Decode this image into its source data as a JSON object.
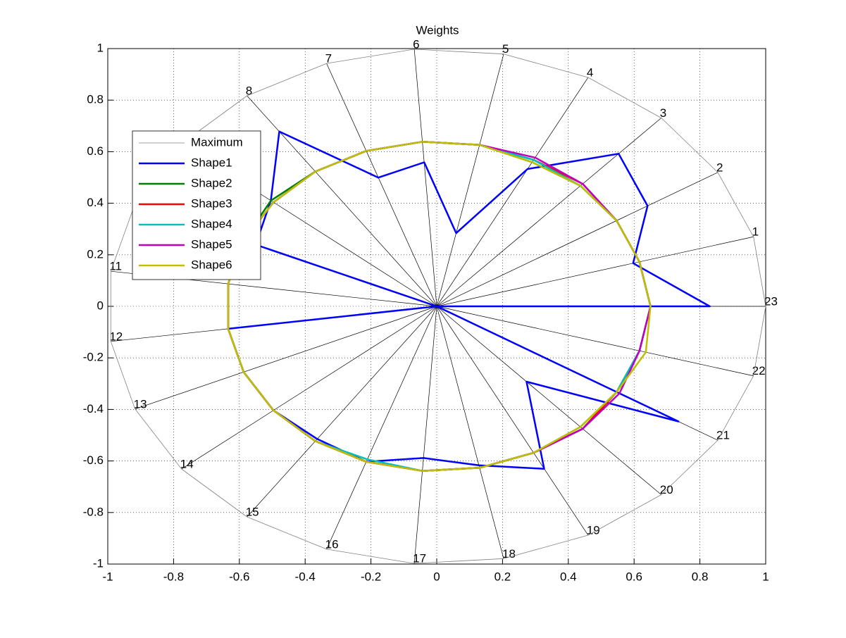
{
  "chart_data": {
    "type": "radar",
    "title": "Weights",
    "categories": [
      "1",
      "2",
      "3",
      "4",
      "5",
      "6",
      "7",
      "8",
      "9",
      "10",
      "11",
      "12",
      "13",
      "14",
      "15",
      "16",
      "17",
      "18",
      "19",
      "20",
      "21",
      "22",
      "23"
    ],
    "xlim": [
      -1,
      1
    ],
    "ylim": [
      -1,
      1
    ],
    "xticks": [
      -1,
      -0.8,
      -0.6,
      -0.4,
      -0.2,
      0,
      0.2,
      0.4,
      0.6,
      0.8,
      1
    ],
    "yticks": [
      -1,
      -0.8,
      -0.6,
      -0.4,
      -0.2,
      0,
      0.2,
      0.4,
      0.6,
      0.8,
      1
    ],
    "grid": true,
    "legend": "northwest",
    "series": [
      {
        "name": "Maximum",
        "color": "#808080",
        "values": [
          1,
          1,
          1,
          1,
          1,
          1,
          1,
          1,
          1,
          1,
          1,
          1,
          1,
          1,
          1,
          1,
          1,
          1,
          1,
          1,
          1,
          1,
          1
        ]
      },
      {
        "name": "Shape1",
        "color": "#0000ff",
        "values": [
          0.62,
          0.75,
          0.81,
          0.6,
          0.29,
          0.56,
          0.53,
          0.83,
          0.65,
          0.6,
          0,
          0.64,
          0.64,
          0.64,
          0.63,
          0.64,
          0.59,
          0.63,
          0.71,
          0.4,
          0.86,
          0,
          0.83
        ]
      },
      {
        "name": "Shape2",
        "color": "#008000",
        "values": [
          0.64,
          0.64,
          0.64,
          0.63,
          0.64,
          0.64,
          0.64,
          0.64,
          0.65,
          0.64,
          0.64,
          0.64,
          0.64,
          0.64,
          0.64,
          0.64,
          0.64,
          0.64,
          0.64,
          0.65,
          0.64,
          0.64,
          0.65
        ]
      },
      {
        "name": "Shape3",
        "color": "#ff0000",
        "values": [
          0.64,
          0.64,
          0.65,
          0.64,
          0.64,
          0.64,
          0.64,
          0.64,
          0.64,
          0.64,
          0.64,
          0.64,
          0.64,
          0.64,
          0.64,
          0.64,
          0.64,
          0.64,
          0.64,
          0.65,
          0.64,
          0.64,
          0.65
        ]
      },
      {
        "name": "Shape4",
        "color": "#00bfbf",
        "values": [
          0.64,
          0.64,
          0.64,
          0.64,
          0.64,
          0.64,
          0.64,
          0.64,
          0.64,
          0.64,
          0.64,
          0.64,
          0.64,
          0.64,
          0.64,
          0.63,
          0.64,
          0.64,
          0.64,
          0.64,
          0.64,
          0.64,
          0.65
        ]
      },
      {
        "name": "Shape5",
        "color": "#bf00bf",
        "values": [
          0.64,
          0.64,
          0.65,
          0.65,
          0.64,
          0.64,
          0.64,
          0.64,
          0.64,
          0.64,
          0.64,
          0.64,
          0.64,
          0.64,
          0.64,
          0.64,
          0.64,
          0.64,
          0.64,
          0.65,
          0.65,
          0.64,
          0.65
        ]
      },
      {
        "name": "Shape6",
        "color": "#bfbf00",
        "values": [
          0.64,
          0.64,
          0.64,
          0.63,
          0.64,
          0.64,
          0.64,
          0.64,
          0.64,
          0.64,
          0.64,
          0.64,
          0.64,
          0.64,
          0.64,
          0.64,
          0.64,
          0.64,
          0.64,
          0.64,
          0.64,
          0.66,
          0.65
        ]
      }
    ]
  }
}
